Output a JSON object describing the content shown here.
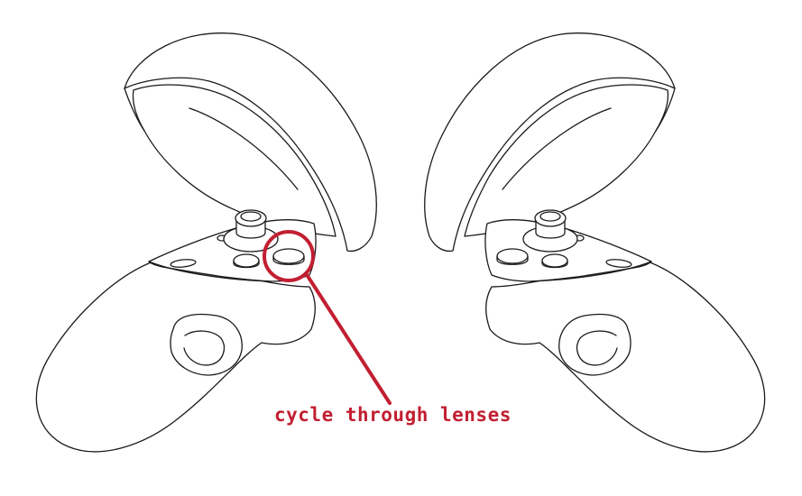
{
  "diagram": {
    "subject": "VR touch controllers (left and right)",
    "callout": {
      "label": "cycle through lenses",
      "color": "#c21f32"
    },
    "line_color": "#1a1a1a"
  }
}
